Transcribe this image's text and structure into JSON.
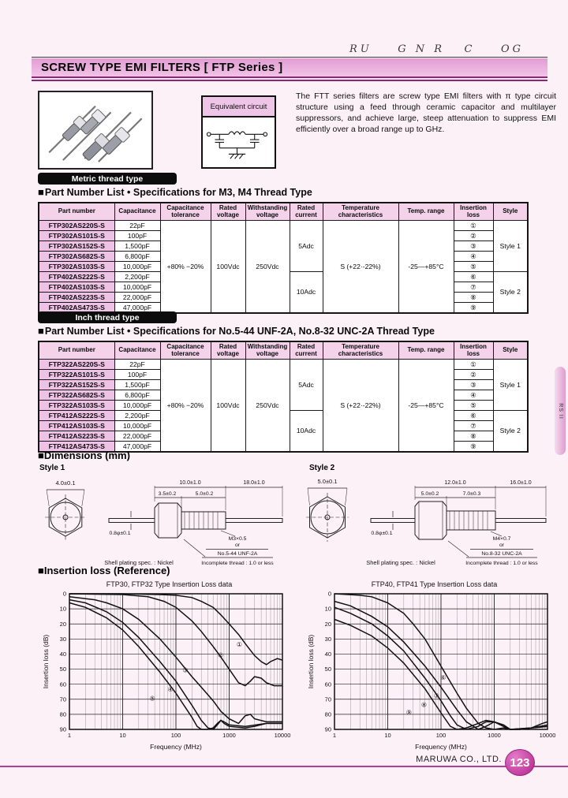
{
  "watermark": "RU    G N R   C    OG",
  "page": {
    "title": "SCREW TYPE EMI FILTERS [ FTP Series ]"
  },
  "intro": {
    "equivalent_circuit_label": "Equivalent circuit",
    "description": "The FTT series filters are screw type EMI filters with π type circuit structure using a feed through ceramic capacitor and multilayer suppressors, and achieve large, steep attenuation to suppress EMI efficiently over a broad range up to GHz."
  },
  "metric_section": {
    "tag": "Metric thread type",
    "heading_bullet": "■",
    "heading": "Part Number List • Specifications for  M3, M4 Thread Type"
  },
  "inch_section": {
    "tag": "Inch thread type",
    "heading_bullet": "■",
    "heading": "Part Number List • Specifications for  No.5-44 UNF-2A, No.8-32 UNC-2A Thread Type"
  },
  "table_headers": [
    "Part number",
    "Capacitance",
    "Capacitance tolerance",
    "Rated voltage",
    "Withstanding voltage",
    "Rated current",
    "Temperature characteristics",
    "Temp. range",
    "Insertion loss",
    "Style"
  ],
  "shared_specs": {
    "tolerance": "+80%  −20%",
    "rated_voltage": "100Vdc",
    "withstanding_voltage": "250Vdc",
    "rated_current_style1": "5Adc",
    "rated_current_style2": "10Adc",
    "temp_characteristics": "S (+22·-22%)",
    "temp_range": "-25—+85°C",
    "style1": "Style 1",
    "style2": "Style 2"
  },
  "metric_table": {
    "rows": [
      {
        "part": "FTP302AS220S-S",
        "cap": "22pF",
        "loss": "①"
      },
      {
        "part": "FTP302AS101S-S",
        "cap": "100pF",
        "loss": "②"
      },
      {
        "part": "FTP302AS152S-S",
        "cap": "1,500pF",
        "loss": "③"
      },
      {
        "part": "FTP302AS682S-S",
        "cap": "6,800pF",
        "loss": "④"
      },
      {
        "part": "FTP302AS103S-S",
        "cap": "10,000pF",
        "loss": "⑤"
      },
      {
        "part": "FTP402AS222S-S",
        "cap": "2,200pF",
        "loss": "⑥"
      },
      {
        "part": "FTP402AS103S-S",
        "cap": "10,000pF",
        "loss": "⑦"
      },
      {
        "part": "FTP402AS223S-S",
        "cap": "22,000pF",
        "loss": "⑧"
      },
      {
        "part": "FTP402AS473S-S",
        "cap": "47,000pF",
        "loss": "⑨"
      }
    ]
  },
  "inch_table": {
    "rows": [
      {
        "part": "FTP322AS220S-S",
        "cap": "22pF",
        "loss": "①"
      },
      {
        "part": "FTP322AS101S-S",
        "cap": "100pF",
        "loss": "②"
      },
      {
        "part": "FTP322AS152S-S",
        "cap": "1,500pF",
        "loss": "③"
      },
      {
        "part": "FTP322AS682S-S",
        "cap": "6,800pF",
        "loss": "④"
      },
      {
        "part": "FTP322AS103S-S",
        "cap": "10,000pF",
        "loss": "⑤"
      },
      {
        "part": "FTP412AS222S-S",
        "cap": "2,200pF",
        "loss": "⑥"
      },
      {
        "part": "FTP412AS103S-S",
        "cap": "10,000pF",
        "loss": "⑦"
      },
      {
        "part": "FTP412AS223S-S",
        "cap": "22,000pF",
        "loss": "⑧"
      },
      {
        "part": "FTP412AS473S-S",
        "cap": "47,000pF",
        "loss": "⑨"
      }
    ]
  },
  "dimensions": {
    "heading_bullet": "■",
    "heading": "Dimensions (mm)",
    "style1": {
      "label": "Style 1",
      "hex_dia": "4.0±0.1",
      "len_body": "10.0±1.0",
      "len_lead": "18.0±1.0",
      "len_hex": "3.5±0.2",
      "len_thread": "5.0±0.2",
      "lead_dia": "0.8φ±0.1",
      "thread_line1": "M3×0.5",
      "thread_line2": "or",
      "thread_line3": "No.5-44 UNF-2A",
      "incomplete_note": "Incomplete thread : 1.0 or less",
      "plating_note": "Shell plating spec. : Nickel"
    },
    "style2": {
      "label": "Style 2",
      "hex_dia": "5.0±0.1",
      "len_body": "12.0±1.0",
      "len_lead": "16.0±1.0",
      "len_hex": "5.0±0.2",
      "len_thread": "7.0±0.3",
      "lead_dia": "0.8φ±0.1",
      "thread_line1": "M4×0.7",
      "thread_line2": "or",
      "thread_line3": "No.8-32 UNC-2A",
      "incomplete_note": "Incomplete thread : 1.0 or less",
      "plating_note": "Shell plating spec. : Nickel"
    }
  },
  "insertion_section": {
    "heading_bullet": "■",
    "heading": "Insertion loss (Reference)"
  },
  "chart_data": [
    {
      "type": "line",
      "title": "FTP30, FTP32 Type Insertion Loss data",
      "xlabel": "Frequency (MHz)",
      "ylabel": "Insertion loss (dB)",
      "x_scale": "log",
      "xlim": [
        1,
        10000
      ],
      "ylim": [
        0,
        90
      ],
      "y_inverted": true,
      "grid": true,
      "x_ticks": [
        "1",
        "10",
        "100",
        "1000",
        "10000"
      ],
      "y_ticks": [
        0,
        10,
        20,
        30,
        40,
        50,
        60,
        70,
        80,
        90
      ],
      "series": [
        {
          "name": "①",
          "label_at": [
            1550,
            35
          ],
          "points": [
            [
              1,
              0
            ],
            [
              10,
              0
            ],
            [
              50,
              0.5
            ],
            [
              100,
              1
            ],
            [
              200,
              2.5
            ],
            [
              300,
              5
            ],
            [
              500,
              9
            ],
            [
              700,
              14
            ],
            [
              1000,
              20
            ],
            [
              1500,
              27
            ],
            [
              2000,
              33
            ],
            [
              3000,
              41
            ],
            [
              4000,
              45
            ],
            [
              5000,
              47
            ],
            [
              6000,
              45
            ],
            [
              8000,
              43
            ],
            [
              10000,
              44
            ]
          ]
        },
        {
          "name": "②",
          "label_at": [
            690,
            42
          ],
          "points": [
            [
              1,
              0
            ],
            [
              10,
              0.5
            ],
            [
              30,
              2
            ],
            [
              60,
              5
            ],
            [
              100,
              9
            ],
            [
              200,
              18
            ],
            [
              300,
              25
            ],
            [
              500,
              35
            ],
            [
              700,
              42
            ],
            [
              1000,
              50
            ],
            [
              1500,
              59
            ],
            [
              2000,
              61
            ],
            [
              2500,
              58
            ],
            [
              3000,
              55
            ],
            [
              4000,
              56
            ],
            [
              5000,
              59
            ],
            [
              7000,
              61
            ],
            [
              10000,
              61
            ]
          ]
        },
        {
          "name": "③",
          "label_at": [
            150,
            52
          ],
          "points": [
            [
              1,
              2
            ],
            [
              3,
              4
            ],
            [
              5,
              6
            ],
            [
              10,
              10
            ],
            [
              20,
              17
            ],
            [
              50,
              30
            ],
            [
              100,
              42
            ],
            [
              200,
              55
            ],
            [
              300,
              62
            ],
            [
              500,
              71
            ],
            [
              700,
              78
            ],
            [
              1000,
              83
            ],
            [
              1500,
              86
            ],
            [
              2000,
              81
            ],
            [
              2500,
              80
            ],
            [
              3000,
              83
            ],
            [
              5000,
              85
            ],
            [
              10000,
              85
            ]
          ]
        },
        {
          "name": "④",
          "label_at": [
            79,
            65
          ],
          "points": [
            [
              1,
              4
            ],
            [
              2,
              6
            ],
            [
              5,
              12
            ],
            [
              10,
              19
            ],
            [
              20,
              29
            ],
            [
              50,
              45
            ],
            [
              100,
              58
            ],
            [
              200,
              74
            ],
            [
              300,
              84
            ],
            [
              400,
              89
            ],
            [
              500,
              90
            ],
            [
              600,
              87
            ],
            [
              700,
              84
            ],
            [
              800,
              86
            ],
            [
              1000,
              88
            ],
            [
              2000,
              89
            ],
            [
              3000,
              88
            ],
            [
              5000,
              86
            ],
            [
              10000,
              86
            ]
          ]
        },
        {
          "name": "⑤",
          "label_at": [
            36,
            71
          ],
          "points": [
            [
              1,
              6
            ],
            [
              2,
              9
            ],
            [
              5,
              16
            ],
            [
              10,
              24
            ],
            [
              20,
              35
            ],
            [
              50,
              52
            ],
            [
              100,
              66
            ],
            [
              200,
              82
            ],
            [
              250,
              88
            ],
            [
              300,
              90
            ],
            [
              400,
              90
            ],
            [
              500,
              89
            ],
            [
              600,
              86
            ],
            [
              700,
              84
            ],
            [
              800,
              85
            ],
            [
              1000,
              87
            ],
            [
              2000,
              88
            ],
            [
              5000,
              86
            ],
            [
              10000,
              86
            ]
          ]
        }
      ]
    },
    {
      "type": "line",
      "title": "FTP40, FTP41 Type Insertion Loss data",
      "xlabel": "Frequency (MHz)",
      "ylabel": "Insertion loss (dB)",
      "x_scale": "log",
      "xlim": [
        1,
        10000
      ],
      "ylim": [
        0,
        90
      ],
      "y_inverted": true,
      "grid": true,
      "x_ticks": [
        "1",
        "10",
        "100",
        "1000",
        "10000"
      ],
      "y_ticks": [
        0,
        10,
        20,
        30,
        40,
        50,
        60,
        70,
        80,
        90
      ],
      "series": [
        {
          "name": "⑥",
          "label_at": [
            110,
            57
          ],
          "points": [
            [
              1,
              0
            ],
            [
              3,
              1
            ],
            [
              5,
              2
            ],
            [
              10,
              6
            ],
            [
              20,
              13
            ],
            [
              30,
              20
            ],
            [
              50,
              30
            ],
            [
              100,
              48
            ],
            [
              200,
              66
            ],
            [
              300,
              76
            ],
            [
              500,
              86
            ],
            [
              700,
              89
            ],
            [
              1000,
              90
            ],
            [
              1500,
              89
            ],
            [
              2000,
              90
            ],
            [
              3000,
              90
            ],
            [
              5000,
              89
            ],
            [
              8000,
              86
            ],
            [
              10000,
              85
            ]
          ]
        },
        {
          "name": "⑦",
          "label_at": [
            82,
            69
          ],
          "points": [
            [
              1,
              5
            ],
            [
              2,
              8
            ],
            [
              5,
              15
            ],
            [
              10,
              22
            ],
            [
              20,
              32
            ],
            [
              50,
              48
            ],
            [
              100,
              62
            ],
            [
              200,
              77
            ],
            [
              300,
              85
            ],
            [
              500,
              90
            ],
            [
              700,
              88
            ],
            [
              1000,
              85
            ],
            [
              1500,
              87
            ],
            [
              2000,
              90
            ],
            [
              3000,
              90
            ],
            [
              5000,
              89
            ],
            [
              10000,
              88
            ]
          ]
        },
        {
          "name": "⑧",
          "label_at": [
            48,
            75
          ],
          "points": [
            [
              1,
              9
            ],
            [
              2,
              13
            ],
            [
              5,
              20
            ],
            [
              10,
              28
            ],
            [
              20,
              38
            ],
            [
              50,
              56
            ],
            [
              100,
              71
            ],
            [
              150,
              81
            ],
            [
              200,
              87
            ],
            [
              300,
              90
            ],
            [
              500,
              88
            ],
            [
              700,
              85
            ],
            [
              1000,
              85
            ],
            [
              1500,
              88
            ],
            [
              2000,
              90
            ],
            [
              5000,
              89
            ],
            [
              10000,
              88
            ]
          ]
        },
        {
          "name": "⑨",
          "label_at": [
            25,
            80
          ],
          "points": [
            [
              1,
              17
            ],
            [
              2,
              21
            ],
            [
              5,
              28
            ],
            [
              10,
              36
            ],
            [
              20,
              46
            ],
            [
              50,
              63
            ],
            [
              100,
              79
            ],
            [
              150,
              88
            ],
            [
              200,
              90
            ],
            [
              300,
              89
            ],
            [
              500,
              86
            ],
            [
              700,
              84
            ],
            [
              1000,
              85
            ],
            [
              1500,
              88
            ],
            [
              2000,
              90
            ],
            [
              5000,
              89
            ],
            [
              10000,
              87
            ]
          ]
        }
      ]
    }
  ],
  "footer": {
    "company": "MARUWA CO., LTD.",
    "page_number": "123"
  },
  "side_tab": {
    "text": "RS   II"
  },
  "colors": {
    "accent_magenta": "#8e2579",
    "title_bar_pink": "#e8a9d8",
    "table_header_bg": "#f3d2ea",
    "part_cell_bg": "#edc2e4",
    "page_bg": "#fdf1f8",
    "footer_line": "#b13f9e",
    "tag_black": "#0c0c0c"
  }
}
